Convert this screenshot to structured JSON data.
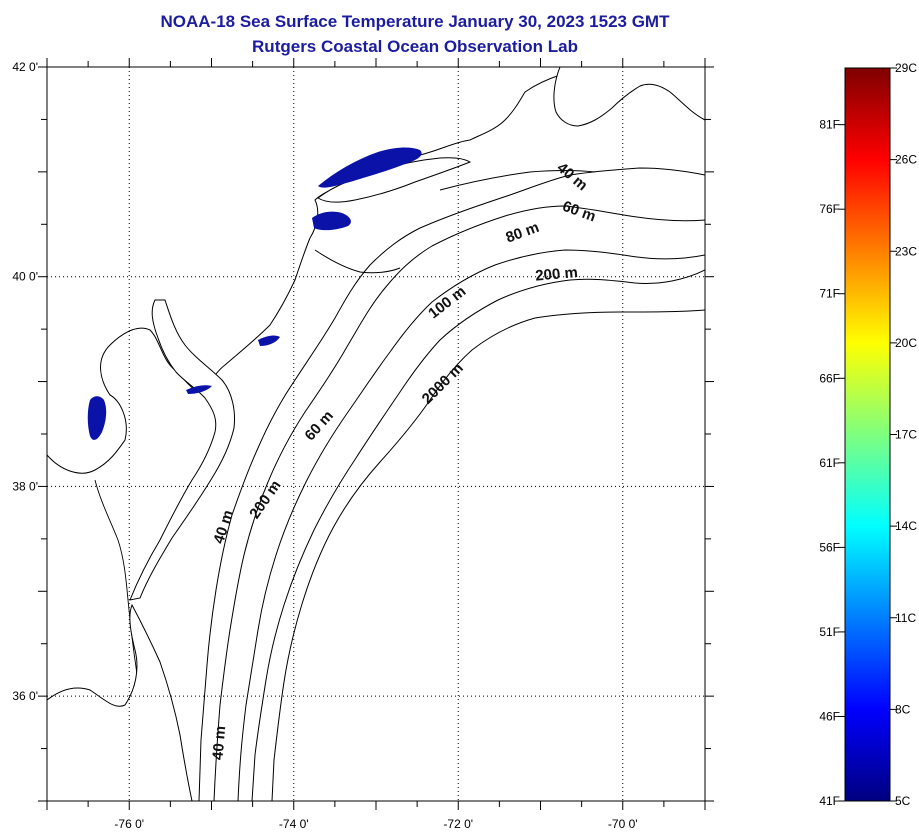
{
  "title": {
    "line1": "NOAA-18 Sea Surface Temperature January 30, 2023 1523 GMT",
    "line2": "Rutgers Coastal Ocean Observation Lab"
  },
  "map": {
    "lon_range": [
      -77,
      -69
    ],
    "lat_range": [
      35,
      42
    ],
    "lat_ticks": [
      {
        "value": 42,
        "label": "42 0'"
      },
      {
        "value": 40,
        "label": "40 0'"
      },
      {
        "value": 38,
        "label": "38 0'"
      },
      {
        "value": 36,
        "label": "36 0'"
      }
    ],
    "lon_ticks": [
      {
        "value": -76,
        "label": "-76 0'"
      },
      {
        "value": -74,
        "label": "-74 0'"
      },
      {
        "value": -72,
        "label": "-72 0'"
      },
      {
        "value": -70,
        "label": "-70 0'"
      }
    ],
    "contour_labels": [
      {
        "text": "40 m",
        "lon": -70.65,
        "lat": 40.92,
        "angle": 40
      },
      {
        "text": "60 m",
        "lon": -70.55,
        "lat": 40.58,
        "angle": 20
      },
      {
        "text": "80 m",
        "lon": -71.2,
        "lat": 40.38,
        "angle": -20
      },
      {
        "text": "200 m",
        "lon": -70.8,
        "lat": 39.98,
        "angle": -5
      },
      {
        "text": "100 m",
        "lon": -72.1,
        "lat": 39.72,
        "angle": -38
      },
      {
        "text": "2000 m",
        "lon": -72.15,
        "lat": 38.95,
        "angle": -45
      },
      {
        "text": "60 m",
        "lon": -73.65,
        "lat": 38.55,
        "angle": -48
      },
      {
        "text": "200 m",
        "lon": -74.3,
        "lat": 37.85,
        "angle": -55
      },
      {
        "text": "40 m",
        "lon": -74.8,
        "lat": 37.6,
        "angle": -72
      },
      {
        "text": "40 m",
        "lon": -74.85,
        "lat": 35.55,
        "angle": -85
      }
    ],
    "ocean_color": "#ffffff",
    "cold_water_color": "#0a12a8"
  },
  "colorbar": {
    "colors": [
      "#00007f",
      "#0000ff",
      "#007fff",
      "#00ffff",
      "#7fff7f",
      "#ffff00",
      "#ff7f00",
      "#ff0000",
      "#7f0000"
    ],
    "celsius_labels": [
      "29C",
      "26C",
      "23C",
      "20C",
      "17C",
      "14C",
      "11C",
      "8C",
      "5C"
    ],
    "fahrenheit_labels": [
      "81F",
      "76F",
      "71F",
      "66F",
      "61F",
      "56F",
      "51F",
      "46F",
      "41F"
    ]
  }
}
